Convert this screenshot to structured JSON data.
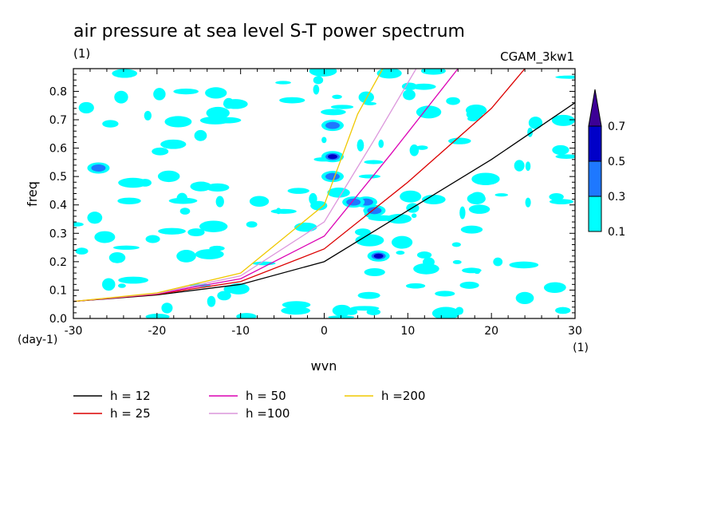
{
  "header": {
    "title": "air pressure at sea level S-T power spectrum",
    "subtitle": "(1)",
    "experiment": "CGAM_3kw1"
  },
  "axes": {
    "xlabel": "wvn",
    "ylabel": "freq",
    "x_unit": "(1)",
    "y_unit": "(day-1)",
    "x_ticks": [
      "-30",
      "-20",
      "-10",
      "0",
      "10",
      "20",
      "30"
    ],
    "y_ticks": [
      "0.0",
      "0.1",
      "0.2",
      "0.3",
      "0.4",
      "0.5",
      "0.6",
      "0.7",
      "0.8"
    ]
  },
  "colorbar": {
    "labels": [
      "0.1",
      "0.3",
      "0.5",
      "0.7"
    ],
    "colors": [
      "#00ffff",
      "#1e78ff",
      "#0000c8",
      "#3c0096"
    ]
  },
  "chart_data": {
    "type": "heatmap",
    "title": "air pressure at sea level S-T power spectrum",
    "xlabel": "wvn",
    "ylabel": "freq",
    "xlim": [
      -30,
      30
    ],
    "ylim": [
      0,
      0.88
    ],
    "levels": [
      0.1,
      0.3,
      0.5,
      0.7
    ],
    "dispersion_curves": [
      {
        "name": "h = 12",
        "color": "#000000",
        "x": [
          -30,
          -20,
          -10,
          0,
          10,
          20,
          30
        ],
        "y": [
          0.06,
          0.083,
          0.12,
          0.2,
          0.38,
          0.56,
          0.76
        ]
      },
      {
        "name": "h = 25",
        "color": "#dc0000",
        "x": [
          -30,
          -20,
          -10,
          0,
          10,
          20,
          24
        ],
        "y": [
          0.06,
          0.085,
          0.13,
          0.245,
          0.48,
          0.74,
          0.88
        ]
      },
      {
        "name": "h = 50",
        "color": "#dc00b4",
        "x": [
          -30,
          -20,
          -10,
          0,
          8,
          16
        ],
        "y": [
          0.06,
          0.087,
          0.14,
          0.29,
          0.58,
          0.88
        ]
      },
      {
        "name": "h =100",
        "color": "#dc96dc",
        "x": [
          -30,
          -20,
          -10,
          0,
          6,
          11
        ],
        "y": [
          0.06,
          0.088,
          0.15,
          0.34,
          0.63,
          0.88
        ]
      },
      {
        "name": "h =200",
        "color": "#f0c800",
        "x": [
          -30,
          -20,
          -10,
          0,
          4,
          7
        ],
        "y": [
          0.06,
          0.09,
          0.16,
          0.4,
          0.72,
          0.88
        ]
      }
    ],
    "contour_blobs": [
      {
        "x": 1,
        "y": 0.57,
        "level": 0.5
      },
      {
        "x": 5,
        "y": 0.41,
        "level": 0.3
      },
      {
        "x": 6.5,
        "y": 0.22,
        "level": 0.5
      },
      {
        "x": -27,
        "y": 0.53,
        "level": 0.3
      },
      {
        "x": 6,
        "y": 0.38,
        "level": 0.3
      },
      {
        "x": 1,
        "y": 0.5,
        "level": 0.3
      },
      {
        "x": 1,
        "y": 0.68,
        "level": 0.3
      },
      {
        "x": 3.5,
        "y": 0.41,
        "level": 0.3
      }
    ]
  }
}
